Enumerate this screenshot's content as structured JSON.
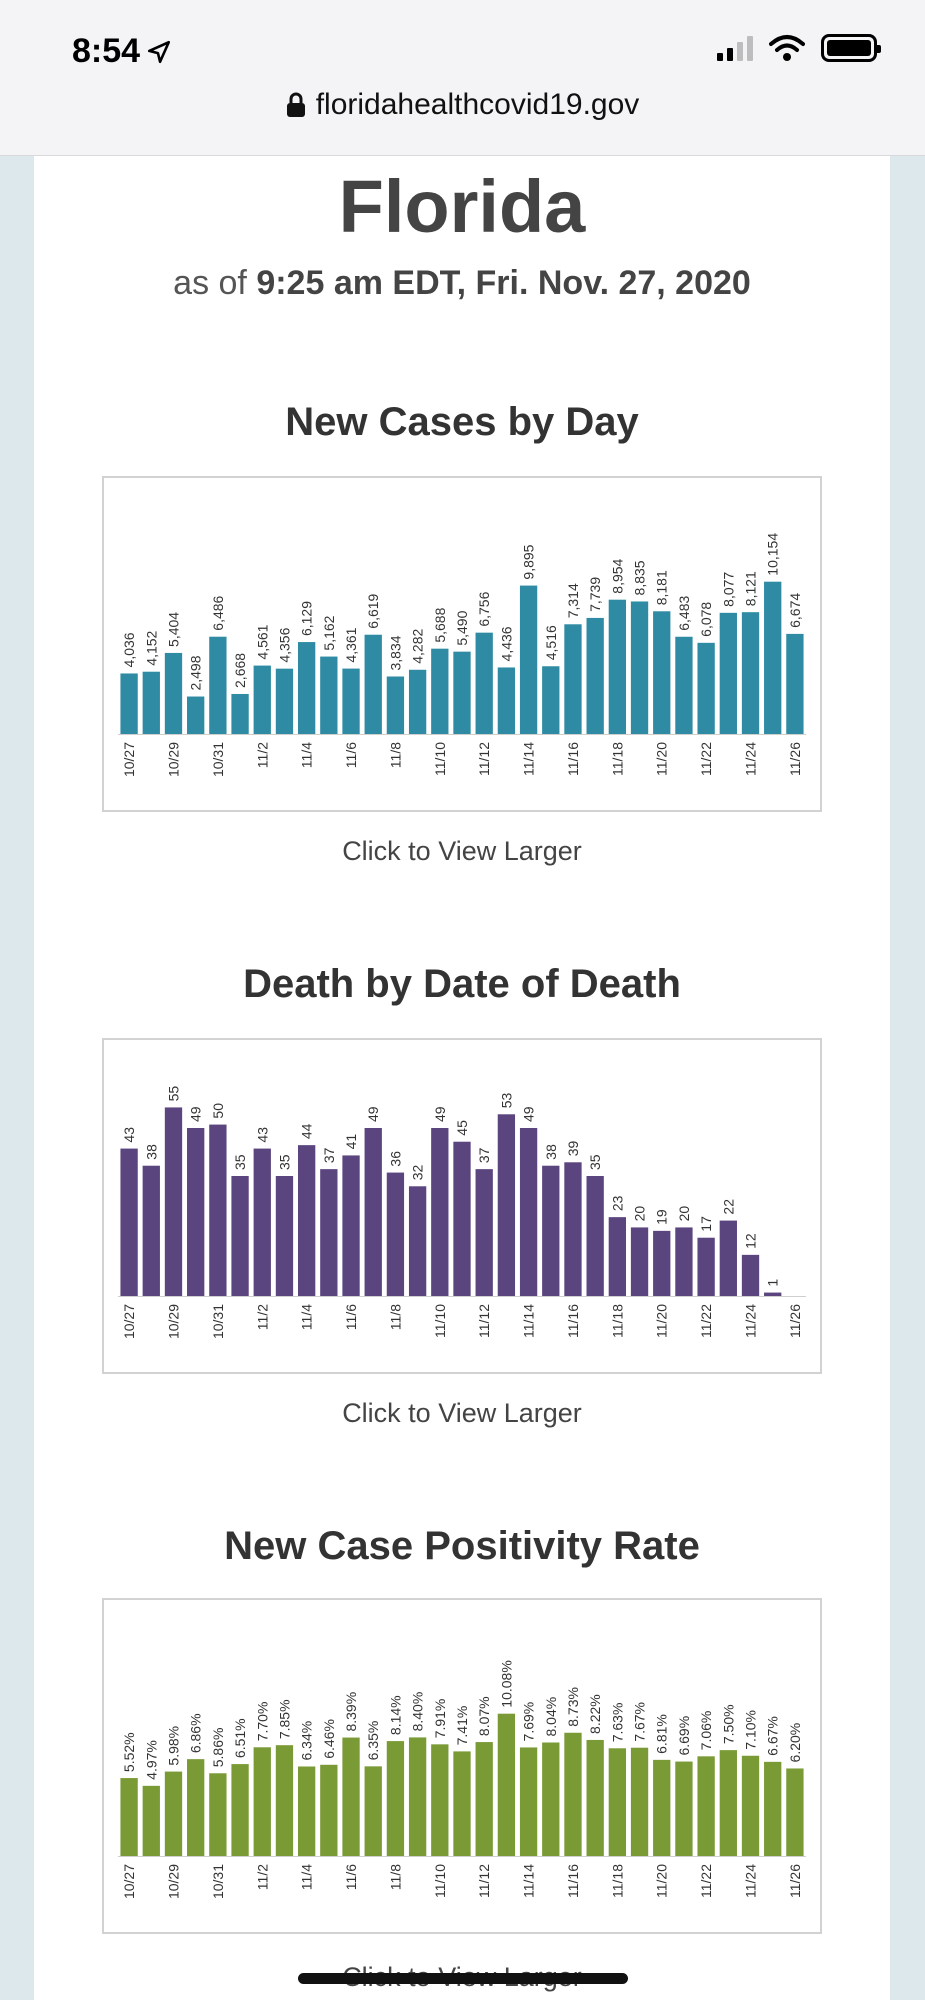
{
  "status_bar": {
    "time": "8:54",
    "url": "floridahealthcovid19.gov"
  },
  "header": {
    "title": "Florida",
    "as_of_prefix": "as of ",
    "as_of_value": "9:25 am EDT, Fri. Nov. 27, 2020"
  },
  "view_larger_label": "Click to View Larger",
  "chart_data": [
    {
      "type": "bar",
      "title": "New Cases by Day",
      "color": "#2e8ba3",
      "categories": [
        "10/27",
        "10/28",
        "10/29",
        "10/30",
        "10/31",
        "11/1",
        "11/2",
        "11/3",
        "11/4",
        "11/5",
        "11/6",
        "11/7",
        "11/8",
        "11/9",
        "11/10",
        "11/11",
        "11/12",
        "11/13",
        "11/14",
        "11/15",
        "11/16",
        "11/17",
        "11/18",
        "11/19",
        "11/20",
        "11/21",
        "11/22",
        "11/23",
        "11/24",
        "11/25",
        "11/26"
      ],
      "tick_labels": [
        "10/27",
        "10/29",
        "10/31",
        "11/2",
        "11/4",
        "11/6",
        "11/8",
        "11/10",
        "11/12",
        "11/14",
        "11/16",
        "11/18",
        "11/20",
        "11/22",
        "11/24",
        "11/26"
      ],
      "values": [
        4036,
        4152,
        5404,
        2498,
        6486,
        2668,
        4561,
        4356,
        6129,
        5162,
        4361,
        6619,
        3834,
        4282,
        5688,
        5490,
        6756,
        4436,
        9895,
        4516,
        7314,
        7739,
        8954,
        8835,
        8181,
        6483,
        6078,
        8077,
        8121,
        10154,
        6674
      ],
      "labels": [
        "4,036",
        "4,152",
        "5,404",
        "2,498",
        "6,486",
        "2,668",
        "4,561",
        "4,356",
        "6,129",
        "5,162",
        "4,361",
        "6,619",
        "3,834",
        "4,282",
        "5,688",
        "5,490",
        "6,756",
        "4,436",
        "9,895",
        "4,516",
        "7,314",
        "7,739",
        "8,954",
        "8,835",
        "8,181",
        "6,483",
        "6,078",
        "8,077",
        "8,121",
        "10,154",
        "6,674"
      ],
      "ylim": [
        0,
        16000
      ]
    },
    {
      "type": "bar",
      "title": "Death by Date of Death",
      "color": "#5b457f",
      "categories": [
        "10/27",
        "10/28",
        "10/29",
        "10/30",
        "10/31",
        "11/1",
        "11/2",
        "11/3",
        "11/4",
        "11/5",
        "11/6",
        "11/7",
        "11/8",
        "11/9",
        "11/10",
        "11/11",
        "11/12",
        "11/13",
        "11/14",
        "11/15",
        "11/16",
        "11/17",
        "11/18",
        "11/19",
        "11/20",
        "11/21",
        "11/22",
        "11/23",
        "11/24",
        "11/25",
        "11/26"
      ],
      "tick_labels": [
        "10/27",
        "10/29",
        "10/31",
        "11/2",
        "11/4",
        "11/6",
        "11/8",
        "11/10",
        "11/12",
        "11/14",
        "11/16",
        "11/18",
        "11/20",
        "11/22",
        "11/24",
        "11/26"
      ],
      "values": [
        43,
        38,
        55,
        49,
        50,
        35,
        43,
        35,
        44,
        37,
        41,
        49,
        36,
        32,
        49,
        45,
        37,
        53,
        49,
        38,
        39,
        35,
        23,
        20,
        19,
        20,
        17,
        22,
        12,
        1,
        0
      ],
      "labels": [
        "43",
        "38",
        "55",
        "49",
        "50",
        "35",
        "43",
        "35",
        "44",
        "37",
        "41",
        "49",
        "36",
        "32",
        "49",
        "45",
        "37",
        "53",
        "49",
        "38",
        "39",
        "35",
        "23",
        "20",
        "19",
        "20",
        "17",
        "22",
        "12",
        "1",
        ""
      ],
      "ylim": [
        0,
        70
      ]
    },
    {
      "type": "bar",
      "title": "New Case Positivity Rate",
      "color": "#7a9a36",
      "categories": [
        "10/27",
        "10/28",
        "10/29",
        "10/30",
        "10/31",
        "11/1",
        "11/2",
        "11/3",
        "11/4",
        "11/5",
        "11/6",
        "11/7",
        "11/8",
        "11/9",
        "11/10",
        "11/11",
        "11/12",
        "11/13",
        "11/14",
        "11/15",
        "11/16",
        "11/17",
        "11/18",
        "11/19",
        "11/20",
        "11/21",
        "11/22",
        "11/23",
        "11/24",
        "11/25",
        "11/26"
      ],
      "tick_labels": [
        "10/27",
        "10/29",
        "10/31",
        "11/2",
        "11/4",
        "11/6",
        "11/8",
        "11/10",
        "11/12",
        "11/14",
        "11/16",
        "11/18",
        "11/20",
        "11/22",
        "11/24",
        "11/26"
      ],
      "values": [
        5.52,
        4.97,
        5.98,
        6.86,
        5.86,
        6.51,
        7.7,
        7.85,
        6.34,
        6.46,
        8.39,
        6.35,
        8.14,
        8.4,
        7.91,
        7.41,
        8.07,
        10.08,
        7.69,
        8.04,
        8.73,
        8.22,
        7.63,
        7.67,
        6.81,
        6.69,
        7.06,
        7.5,
        7.1,
        6.67,
        6.2
      ],
      "labels": [
        "5.52%",
        "4.97%",
        "5.98%",
        "6.86%",
        "5.86%",
        "6.51%",
        "7.70%",
        "7.85%",
        "6.34%",
        "6.46%",
        "8.39%",
        "6.35%",
        "8.14%",
        "8.40%",
        "7.91%",
        "7.41%",
        "8.07%",
        "10.08%",
        "7.69%",
        "8.04%",
        "8.73%",
        "8.22%",
        "7.63%",
        "7.67%",
        "6.81%",
        "6.69%",
        "7.06%",
        "7.50%",
        "7.10%",
        "6.67%",
        "6.20%"
      ],
      "ylim": [
        0,
        17
      ]
    }
  ]
}
